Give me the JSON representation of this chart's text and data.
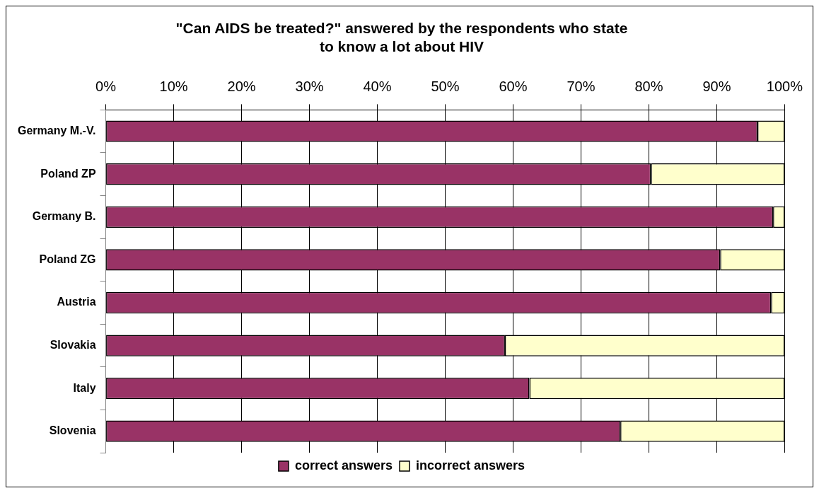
{
  "chart_data": {
    "type": "bar",
    "orientation": "horizontal",
    "stacked": true,
    "title": "\"Can AIDS be treated?\" answered by the respondents who state to know a lot about HIV",
    "categories": [
      "Germany M.-V.",
      "Poland ZP",
      "Germany B.",
      "Poland ZG",
      "Austria",
      "Slovakia",
      "Italy",
      "Slovenia"
    ],
    "series": [
      {
        "name": "correct answers",
        "color": "#993366",
        "values": [
          96,
          80.3,
          98.3,
          90.5,
          98,
          58.8,
          62.4,
          75.8
        ]
      },
      {
        "name": "incorrect answers",
        "color": "#ffffcc",
        "values": [
          4,
          19.7,
          1.7,
          9.5,
          2,
          41.2,
          37.6,
          24.2
        ]
      }
    ],
    "xlim": [
      0,
      100
    ],
    "xticks": [
      {
        "value": 0,
        "label": "0%"
      },
      {
        "value": 10,
        "label": "10%"
      },
      {
        "value": 20,
        "label": "20%"
      },
      {
        "value": 30,
        "label": "30%"
      },
      {
        "value": 40,
        "label": "40%"
      },
      {
        "value": 50,
        "label": "50%"
      },
      {
        "value": 60,
        "label": "60%"
      },
      {
        "value": 70,
        "label": "70%"
      },
      {
        "value": 80,
        "label": "80%"
      },
      {
        "value": 90,
        "label": "90%"
      },
      {
        "value": 100,
        "label": "100%"
      }
    ],
    "grid": "x",
    "legend": "bottom"
  }
}
